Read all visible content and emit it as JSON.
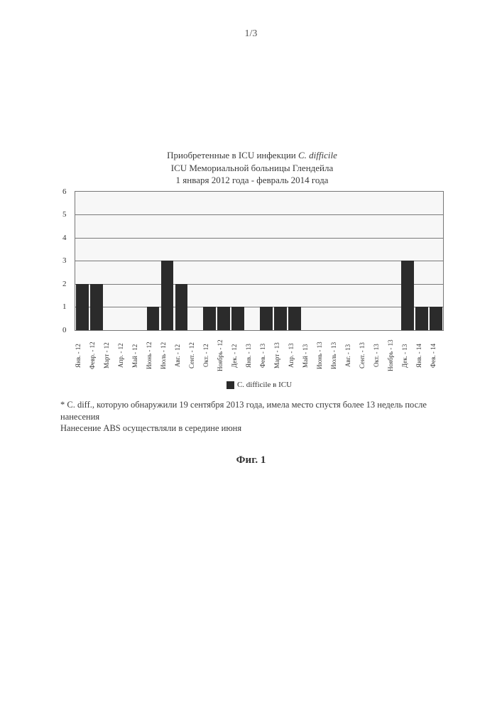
{
  "page_number": "1/3",
  "chart": {
    "type": "bar",
    "title_line1_prefix": "Приобретенные в ICU инфекции ",
    "title_line1_italic": "C. difficile",
    "title_line2": "ICU Мемориальной больницы Глендейла",
    "title_line3": "1 января 2012 года - февраль 2014 года",
    "ylim": [
      0,
      6
    ],
    "ytick_step": 1,
    "yticks": [
      0,
      1,
      2,
      3,
      4,
      5,
      6
    ],
    "grid_color": "#7a7a7a",
    "background_color": "#f7f7f7",
    "bar_color": "#2b2b2b",
    "categories": [
      "Янв. - 12",
      "Февр. - 12",
      "Март - 12",
      "Апр. - 12",
      "Май - 12",
      "Июнь - 12",
      "Июль - 12",
      "Авг. - 12",
      "Сент. - 12",
      "Окт. - 12",
      "Ноябрь - 12",
      "Дек. - 12",
      "Янв. - 13",
      "Фев. - 13",
      "Март - 13",
      "Апр. - 13",
      "Май - 13",
      "Июнь - 13",
      "Июль - 13",
      "Авг. - 13",
      "Сент. - 13",
      "Окт. - 13",
      "Ноябрь - 13",
      "Дек. - 13",
      "Янв. - 14",
      "Фев. - 14"
    ],
    "values": [
      2,
      2,
      0,
      0,
      0,
      1,
      3,
      2,
      0,
      1,
      1,
      1,
      0,
      1,
      1,
      1,
      0,
      0,
      0,
      0,
      0,
      0,
      0,
      3,
      1,
      1
    ],
    "legend_label": "C. difficile в ICU",
    "legend_label_ital": "C. difficile",
    "legend_label_tail": " в ICU"
  },
  "footnote_line1": "* C. diff., которую обнаружили 19 сентября 2013 года, имела место спустя более 13 недель после нанесения",
  "footnote_line2": "Нанесение ABS осуществляли в середине июня",
  "figure_caption": "Фиг. 1"
}
